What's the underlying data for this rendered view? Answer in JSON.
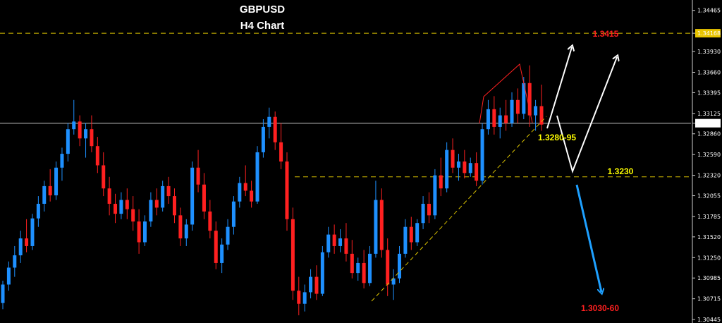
{
  "chart_data": {
    "type": "candlestick",
    "title": "GBPUSD",
    "subtitle": "H4 Chart",
    "ylim": [
      1.304,
      1.346
    ],
    "y_ticks": [
      "1.34465",
      "1.34168",
      "1.33930",
      "1.33660",
      "1.33395",
      "1.33125",
      "1.32998",
      "1.32860",
      "1.32590",
      "1.32320",
      "1.32055",
      "1.31785",
      "1.31520",
      "1.31250",
      "1.30985",
      "1.30715",
      "1.30445"
    ],
    "current_price": "1.32998",
    "marked_price_label": "1.34168",
    "candles": [
      [
        1.3066,
        1.3095,
        1.3058,
        1.309
      ],
      [
        1.309,
        1.312,
        1.3082,
        1.3112
      ],
      [
        1.3112,
        1.314,
        1.31,
        1.3128
      ],
      [
        1.3128,
        1.316,
        1.3118,
        1.315
      ],
      [
        1.315,
        1.3175,
        1.3132,
        1.314
      ],
      [
        1.314,
        1.3182,
        1.3135,
        1.3176
      ],
      [
        1.3176,
        1.3205,
        1.3165,
        1.3195
      ],
      [
        1.3195,
        1.3225,
        1.3185,
        1.3218
      ],
      [
        1.3218,
        1.324,
        1.3198,
        1.3206
      ],
      [
        1.3206,
        1.325,
        1.32,
        1.3242
      ],
      [
        1.3242,
        1.3268,
        1.3225,
        1.326
      ],
      [
        1.326,
        1.33,
        1.325,
        1.3292
      ],
      [
        1.3292,
        1.333,
        1.3285,
        1.3302
      ],
      [
        1.3302,
        1.331,
        1.327,
        1.328
      ],
      [
        1.328,
        1.33,
        1.3255,
        1.3292
      ],
      [
        1.3292,
        1.331,
        1.3262,
        1.327
      ],
      [
        1.327,
        1.3282,
        1.3235,
        1.3245
      ],
      [
        1.3245,
        1.3262,
        1.3205,
        1.3215
      ],
      [
        1.3215,
        1.323,
        1.318,
        1.3195
      ],
      [
        1.3195,
        1.3208,
        1.317,
        1.3182
      ],
      [
        1.3182,
        1.321,
        1.3175,
        1.32
      ],
      [
        1.32,
        1.3215,
        1.3175,
        1.3188
      ],
      [
        1.3188,
        1.3205,
        1.316,
        1.3172
      ],
      [
        1.3172,
        1.3188,
        1.313,
        1.3145
      ],
      [
        1.3145,
        1.318,
        1.314,
        1.3172
      ],
      [
        1.3172,
        1.321,
        1.3165,
        1.32
      ],
      [
        1.32,
        1.3215,
        1.318,
        1.319
      ],
      [
        1.319,
        1.3225,
        1.3185,
        1.3218
      ],
      [
        1.3218,
        1.323,
        1.3195,
        1.3205
      ],
      [
        1.3205,
        1.3215,
        1.317,
        1.318
      ],
      [
        1.318,
        1.319,
        1.314,
        1.315
      ],
      [
        1.315,
        1.3175,
        1.314,
        1.3168
      ],
      [
        1.3168,
        1.325,
        1.316,
        1.3242
      ],
      [
        1.3242,
        1.3265,
        1.321,
        1.322
      ],
      [
        1.322,
        1.3235,
        1.3175,
        1.3185
      ],
      [
        1.3185,
        1.32,
        1.315,
        1.316
      ],
      [
        1.316,
        1.3172,
        1.311,
        1.3118
      ],
      [
        1.3118,
        1.315,
        1.3105,
        1.3142
      ],
      [
        1.3142,
        1.3175,
        1.3135,
        1.3165
      ],
      [
        1.3165,
        1.3205,
        1.3155,
        1.3198
      ],
      [
        1.3198,
        1.323,
        1.319,
        1.3222
      ],
      [
        1.3222,
        1.3245,
        1.3205,
        1.3212
      ],
      [
        1.3212,
        1.3225,
        1.319,
        1.3198
      ],
      [
        1.3198,
        1.327,
        1.3195,
        1.3262
      ],
      [
        1.3262,
        1.3305,
        1.3255,
        1.3295
      ],
      [
        1.3295,
        1.332,
        1.328,
        1.3308
      ],
      [
        1.3308,
        1.3315,
        1.3265,
        1.3275
      ],
      [
        1.3275,
        1.33,
        1.324,
        1.325
      ],
      [
        1.325,
        1.3262,
        1.316,
        1.3175
      ],
      [
        1.3175,
        1.319,
        1.307,
        1.3082
      ],
      [
        1.3082,
        1.31,
        1.305,
        1.3065
      ],
      [
        1.3065,
        1.309,
        1.3055,
        1.308
      ],
      [
        1.308,
        1.311,
        1.3072,
        1.31
      ],
      [
        1.31,
        1.3115,
        1.307,
        1.3078
      ],
      [
        1.3078,
        1.314,
        1.3075,
        1.3132
      ],
      [
        1.3132,
        1.3165,
        1.3125,
        1.3155
      ],
      [
        1.3155,
        1.3168,
        1.313,
        1.314
      ],
      [
        1.314,
        1.3162,
        1.3132,
        1.315
      ],
      [
        1.315,
        1.317,
        1.312,
        1.313
      ],
      [
        1.313,
        1.3148,
        1.3098,
        1.3105
      ],
      [
        1.3105,
        1.3125,
        1.3095,
        1.3118
      ],
      [
        1.3118,
        1.3135,
        1.3085,
        1.3092
      ],
      [
        1.3092,
        1.314,
        1.3088,
        1.313
      ],
      [
        1.313,
        1.3225,
        1.3125,
        1.32
      ],
      [
        1.32,
        1.3215,
        1.3125,
        1.3135
      ],
      [
        1.3135,
        1.315,
        1.3075,
        1.309
      ],
      [
        1.309,
        1.311,
        1.307,
        1.3098
      ],
      [
        1.3098,
        1.314,
        1.3092,
        1.313
      ],
      [
        1.313,
        1.3175,
        1.3125,
        1.3165
      ],
      [
        1.3165,
        1.3178,
        1.3135,
        1.3145
      ],
      [
        1.3145,
        1.3175,
        1.314,
        1.317
      ],
      [
        1.317,
        1.3205,
        1.3162,
        1.3195
      ],
      [
        1.3195,
        1.321,
        1.317,
        1.318
      ],
      [
        1.318,
        1.324,
        1.3175,
        1.3232
      ],
      [
        1.3232,
        1.3255,
        1.3205,
        1.3215
      ],
      [
        1.3215,
        1.3275,
        1.321,
        1.3265
      ],
      [
        1.3265,
        1.328,
        1.3235,
        1.3242
      ],
      [
        1.3242,
        1.326,
        1.3225,
        1.325
      ],
      [
        1.325,
        1.3265,
        1.3228,
        1.3235
      ],
      [
        1.3235,
        1.3255,
        1.323,
        1.3248
      ],
      [
        1.3248,
        1.3262,
        1.3218,
        1.3225
      ],
      [
        1.3225,
        1.33,
        1.322,
        1.3292
      ],
      [
        1.3292,
        1.333,
        1.3285,
        1.3318
      ],
      [
        1.3318,
        1.3335,
        1.3285,
        1.3295
      ],
      [
        1.3295,
        1.332,
        1.328,
        1.331
      ],
      [
        1.331,
        1.333,
        1.329,
        1.33
      ],
      [
        1.33,
        1.334,
        1.3295,
        1.333
      ],
      [
        1.333,
        1.3345,
        1.33,
        1.3312
      ],
      [
        1.3312,
        1.336,
        1.3305,
        1.3352
      ],
      [
        1.3352,
        1.3375,
        1.3295,
        1.331
      ],
      [
        1.331,
        1.333,
        1.329,
        1.3322
      ],
      [
        1.3322,
        1.335,
        1.329,
        1.3298
      ]
    ],
    "annotations": [
      {
        "label": "1.3415",
        "value": 1.3415,
        "color": "#ff2020"
      },
      {
        "label": "1.3280-95",
        "value": 1.3287,
        "color": "#ffff00"
      },
      {
        "label": "1.3230",
        "value": 1.323,
        "color": "#ffff00"
      },
      {
        "label": "1.3030-60",
        "value": 1.3045,
        "color": "#ff2020"
      }
    ],
    "horizontal_lines": [
      {
        "value": 1.34168,
        "style": "dashed",
        "color": "#d8c000"
      },
      {
        "value": 1.32998,
        "style": "solid",
        "color": "#c8c8c8"
      },
      {
        "value": 1.323,
        "style": "dashed",
        "color": "#d8c000"
      }
    ],
    "colors": {
      "bull": "#1e90ff",
      "bear": "#ff2020",
      "background": "#000000",
      "trendline": "#d8c000",
      "wedge": "#ff2020",
      "path_up": "#ffffff",
      "path_down": "#1ea0ff"
    }
  }
}
